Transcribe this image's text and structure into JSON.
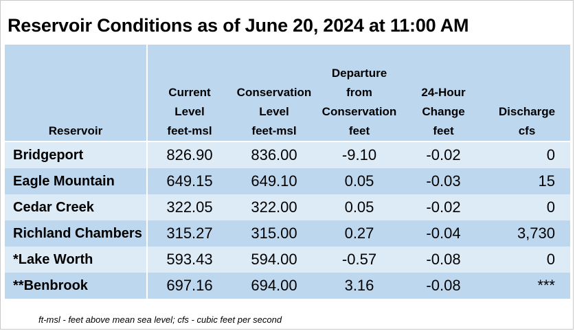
{
  "title": "Reservoir Conditions as of June 20, 2024 at 11:00 AM",
  "columns": {
    "reservoir": [
      "Reservoir"
    ],
    "current": [
      "Current",
      "Level",
      "feet-msl"
    ],
    "conservation": [
      "Conservation",
      "Level",
      "feet-msl"
    ],
    "departure": [
      "Departure",
      "from",
      "Conservation",
      "feet"
    ],
    "change": [
      "24-Hour",
      "Change",
      "feet"
    ],
    "discharge": [
      "Discharge",
      "cfs"
    ]
  },
  "rows": [
    {
      "name": "Bridgeport",
      "current": "826.90",
      "conservation": "836.00",
      "departure": "-9.10",
      "change": "-0.02",
      "discharge": "0"
    },
    {
      "name": "Eagle Mountain",
      "current": "649.15",
      "conservation": "649.10",
      "departure": "0.05",
      "change": "-0.03",
      "discharge": "15"
    },
    {
      "name": "Cedar Creek",
      "current": "322.05",
      "conservation": "322.00",
      "departure": "0.05",
      "change": "-0.02",
      "discharge": "0"
    },
    {
      "name": "Richland Chambers",
      "current": "315.27",
      "conservation": "315.00",
      "departure": "0.27",
      "change": "-0.04",
      "discharge": "3,730"
    },
    {
      "name": "*Lake Worth",
      "current": "593.43",
      "conservation": "594.00",
      "departure": "-0.57",
      "change": "-0.08",
      "discharge": "0"
    },
    {
      "name": "**Benbrook",
      "current": "697.16",
      "conservation": "694.00",
      "departure": "3.16",
      "change": "-0.08",
      "discharge": "***"
    }
  ],
  "footnote": "ft-msl - feet above mean sea level; cfs - cubic feet per second",
  "colors": {
    "header_bg": "#bdd7ee",
    "row_light": "#ddebf7",
    "row_dark": "#bdd7ee"
  }
}
